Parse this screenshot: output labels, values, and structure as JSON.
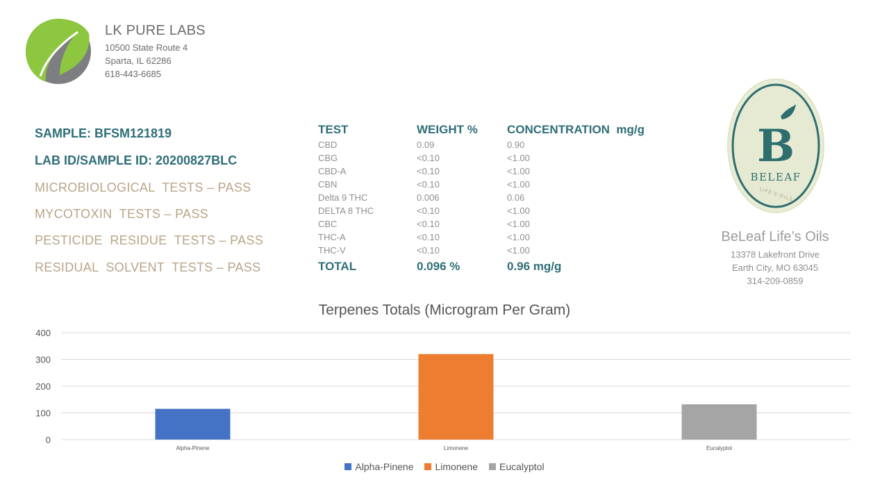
{
  "lab": {
    "name": "LK PURE LABS",
    "address1": "10500 State Route 4",
    "address2": "Sparta, IL 62286",
    "phone": "618-443-6685"
  },
  "sample": {
    "sample_line": "SAMPLE: BFSM121819",
    "lab_id_line": "LAB ID/SAMPLE ID: 20200827BLC",
    "tests": [
      "MICROBIOLOGICAL  TESTS – PASS",
      "MYCOTOXIN  TESTS – PASS",
      "PESTICIDE  RESIDUE  TESTS – PASS",
      "RESIDUAL  SOLVENT  TESTS – PASS"
    ]
  },
  "table": {
    "headers": [
      "TEST",
      "WEIGHT %",
      "CONCENTRATION  mg/g"
    ],
    "rows": [
      [
        "CBD",
        "0.09",
        "0.90"
      ],
      [
        "CBG",
        "<0.10",
        "<1.00"
      ],
      [
        "CBD-A",
        "<0.10",
        "<1.00"
      ],
      [
        "CBN",
        "<0.10",
        "<1.00"
      ],
      [
        "Delta 9 THC",
        "0.006",
        "0.06"
      ],
      [
        "DELTA 8 THC",
        "<0.10",
        "<1.00"
      ],
      [
        "CBC",
        "<0.10",
        "<1.00"
      ],
      [
        "THC-A",
        "<0.10",
        "<1.00"
      ],
      [
        "THC-V",
        "<0.10",
        "<1.00"
      ]
    ],
    "total": [
      "TOTAL",
      "0.096 %",
      "0.96 mg/g"
    ]
  },
  "client": {
    "logo_letter": "B",
    "logo_wordmark": "BELEAF",
    "logo_tagline": "LIFE'S OILS",
    "name": "BeLeaf Life’s Oils",
    "address1": "13378 Lakefront Drive",
    "address2": "Earth City, MO 63045",
    "phone": "314-209-0859"
  },
  "chart_data": {
    "type": "bar",
    "title": "Terpenes Totals (Microgram Per Gram)",
    "categories": [
      "Alpha-Pinene",
      "Limonene",
      "Eucalyptol"
    ],
    "values": [
      115,
      320,
      132
    ],
    "colors": [
      "#4472c4",
      "#ed7d31",
      "#a5a5a5"
    ],
    "ylim": [
      0,
      400
    ],
    "yticks": [
      0,
      100,
      200,
      300,
      400
    ],
    "grid": true,
    "legend": [
      "Alpha-Pinene",
      "Limonene",
      "Eucalyptol"
    ],
    "legend_placement": "bottom"
  }
}
